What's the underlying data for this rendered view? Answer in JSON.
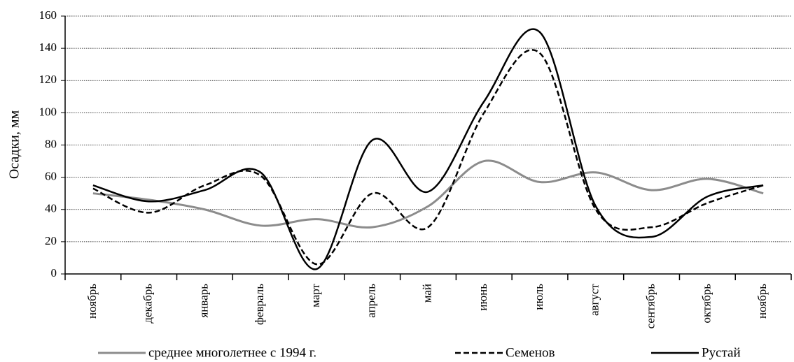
{
  "chart_data": {
    "type": "line",
    "y_label": "Осадки, мм",
    "categories": [
      "ноябрь",
      "декабрь",
      "январь",
      "февраль",
      "март",
      "апрель",
      "май",
      "июнь",
      "июль",
      "август",
      "сентябрь",
      "октябрь",
      "ноябрь"
    ],
    "series": [
      {
        "name": "среднее многолетнее с 1994 г.",
        "color": "#8c8c8c",
        "dash": "solid",
        "values": [
          50,
          46,
          40,
          30,
          34,
          29,
          42,
          70,
          57,
          63,
          52,
          59,
          50
        ]
      },
      {
        "name": "Семенов",
        "color": "#000000",
        "dash": "dashed",
        "values": [
          53,
          38,
          55,
          61,
          6,
          50,
          29,
          100,
          137,
          40,
          29,
          44,
          55
        ]
      },
      {
        "name": "Рустай",
        "color": "#000000",
        "dash": "solid",
        "values": [
          55,
          45,
          52,
          63,
          3,
          83,
          51,
          107,
          150,
          42,
          23,
          48,
          55
        ]
      }
    ],
    "ylim": [
      0,
      160
    ],
    "yticks": [
      0,
      20,
      40,
      60,
      80,
      100,
      120,
      140,
      160
    ],
    "grid": true,
    "legend": "bottom"
  }
}
